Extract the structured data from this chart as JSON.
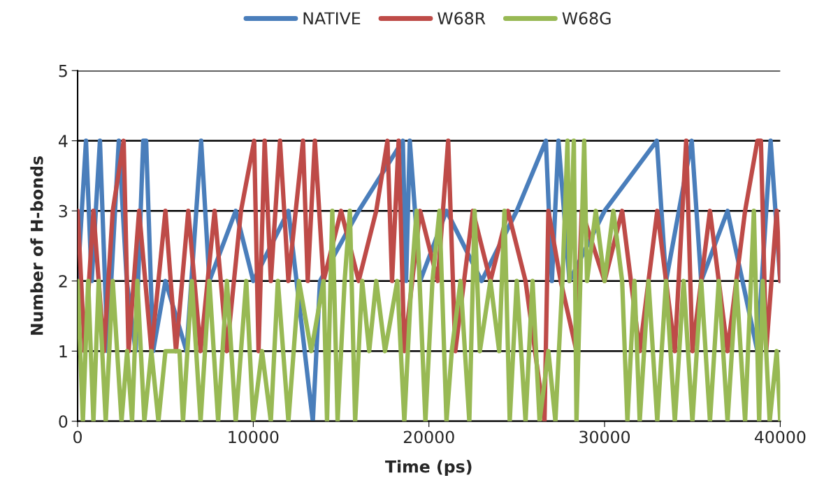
{
  "chart_data": {
    "type": "line",
    "xlabel": "Time (ps)",
    "ylabel": "Number of H-bonds",
    "xlim": [
      0,
      40000
    ],
    "xticks": [
      0,
      10000,
      20000,
      30000,
      40000
    ],
    "ylim": [
      0,
      5
    ],
    "yticks": [
      0,
      1,
      2,
      3,
      4,
      5
    ],
    "grid": "y",
    "legend": "top",
    "marker": "none",
    "line_style": "solid",
    "series": [
      {
        "name": "NATIVE",
        "color": "#4a7ebb",
        "x": [
          0,
          477,
          800,
          1271,
          1700,
          2344,
          2800,
          3300,
          3735,
          3900,
          4300,
          5000,
          6200,
          7032,
          7500,
          9000,
          10000,
          12000,
          13390,
          13800,
          16000,
          18514,
          18700,
          18911,
          19500,
          21000,
          23000,
          25000,
          26659,
          27000,
          27374,
          28000,
          30000,
          32975,
          33500,
          34962,
          35500,
          37000,
          38700,
          39452,
          40000
        ],
        "values": [
          2,
          4,
          2,
          4,
          1,
          4,
          2,
          1,
          4,
          4,
          1,
          2,
          1,
          4,
          2,
          3,
          2,
          3,
          0,
          2,
          3,
          4,
          2,
          4,
          2,
          3,
          2,
          3,
          4,
          2,
          4,
          2,
          3,
          4,
          2,
          4,
          2,
          3,
          1,
          4,
          2
        ]
      },
      {
        "name": "W68R",
        "color": "#be4b48",
        "x": [
          0,
          400,
          900,
          1500,
          2000,
          2622,
          2900,
          3500,
          4200,
          5000,
          5600,
          6300,
          7000,
          7800,
          8500,
          9300,
          10052,
          10300,
          10648,
          11000,
          11522,
          12000,
          12833,
          13100,
          13508,
          14000,
          15000,
          16000,
          17000,
          17640,
          17900,
          18275,
          18600,
          19500,
          20500,
          21096,
          21500,
          22500,
          23500,
          24500,
          25500,
          26580,
          26800,
          27500,
          28400,
          28700,
          30000,
          31000,
          32000,
          33000,
          34000,
          34645,
          35000,
          36000,
          37000,
          38000,
          38700,
          38900,
          39200,
          39800,
          40000
        ],
        "values": [
          3,
          1,
          3,
          1,
          3,
          4,
          1,
          3,
          1,
          3,
          1,
          3,
          1,
          3,
          1,
          3,
          4,
          1,
          4,
          2,
          4,
          2,
          4,
          2,
          4,
          2,
          3,
          2,
          3,
          4,
          2,
          4,
          1,
          3,
          2,
          4,
          1,
          3,
          2,
          3,
          2,
          0,
          3,
          2,
          1,
          3,
          2,
          3,
          1,
          3,
          1,
          4,
          1,
          3,
          1,
          3,
          4,
          4,
          1,
          3,
          2
        ]
      },
      {
        "name": "W68G",
        "color": "#98b954",
        "x": [
          0,
          300,
          600,
          900,
          1200,
          1600,
          2000,
          2500,
          2820,
          3100,
          3400,
          3800,
          4200,
          4600,
          5000,
          5800,
          6000,
          6500,
          7000,
          7500,
          8000,
          8500,
          9000,
          9600,
          10000,
          10500,
          11000,
          11400,
          12000,
          12600,
          13300,
          14000,
          14200,
          14500,
          14800,
          15200,
          15500,
          15800,
          16200,
          16600,
          17000,
          17500,
          18200,
          18600,
          19000,
          19300,
          19800,
          20200,
          20600,
          21000,
          21300,
          21800,
          22300,
          22600,
          22900,
          23500,
          24000,
          24300,
          24600,
          25000,
          25500,
          25900,
          26300,
          26800,
          27200,
          27600,
          27890,
          28000,
          28250,
          28400,
          28840,
          29000,
          29500,
          30000,
          30500,
          31000,
          31300,
          31700,
          32000,
          32500,
          33000,
          33500,
          34000,
          34500,
          35000,
          35500,
          36000,
          36500,
          37000,
          37500,
          38000,
          38500,
          38800,
          39000,
          39400,
          39800,
          40000
        ],
        "values": [
          2,
          0,
          2,
          0,
          2,
          0,
          2,
          0,
          1,
          0,
          2,
          0,
          1,
          0,
          1,
          1,
          0,
          2,
          0,
          2,
          0,
          2,
          0,
          2,
          0,
          1,
          0,
          2,
          0,
          2,
          1,
          2,
          0,
          3,
          0,
          2,
          3,
          0,
          2,
          1,
          2,
          1,
          2,
          0,
          2,
          3,
          0,
          2,
          3,
          0,
          1,
          2,
          0,
          3,
          1,
          2,
          1,
          3,
          0,
          2,
          0,
          2,
          0,
          1,
          0,
          2,
          4,
          2,
          4,
          0,
          4,
          2,
          3,
          2,
          3,
          2,
          0,
          2,
          0,
          2,
          0,
          2,
          0,
          2,
          0,
          2,
          0,
          2,
          0,
          2,
          0,
          3,
          0,
          2,
          0,
          1,
          0
        ]
      }
    ]
  }
}
